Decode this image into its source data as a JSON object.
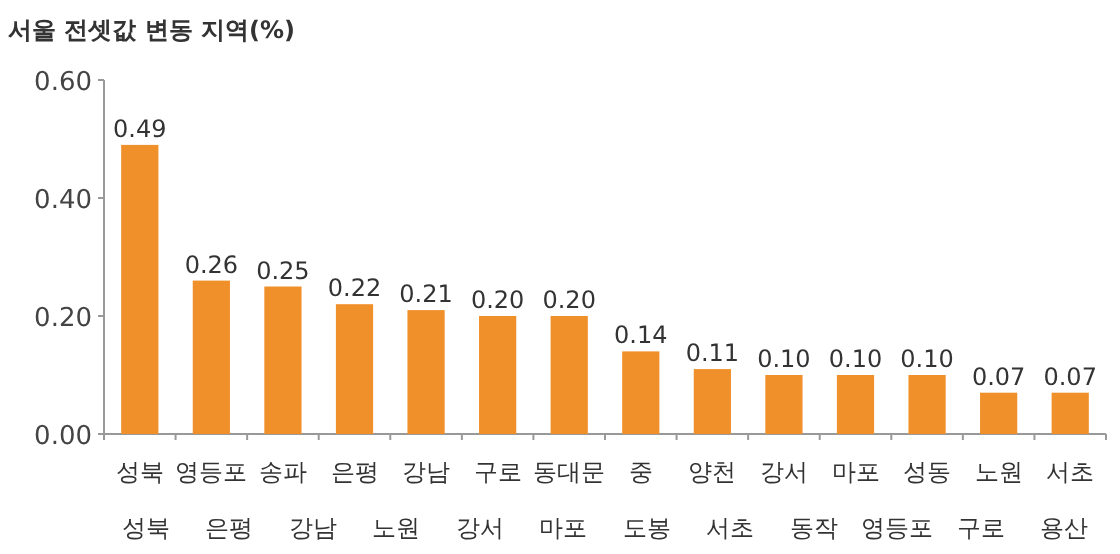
{
  "chart_data": {
    "type": "bar",
    "title": "서울 전셋값 변동 지역(%)",
    "categories": [
      "성북",
      "영등포",
      "송파",
      "은평",
      "강남",
      "구로",
      "동대문",
      "중",
      "양천",
      "강서",
      "마포",
      "성동",
      "노원",
      "서초"
    ],
    "values": [
      0.49,
      0.26,
      0.25,
      0.22,
      0.21,
      0.2,
      0.2,
      0.14,
      0.11,
      0.1,
      0.1,
      0.1,
      0.07,
      0.07
    ],
    "color": "#f0902a",
    "data_labels": true,
    "value_labels": [
      "0.49",
      "0.26",
      "0.25",
      "0.22",
      "0.21",
      "0.20",
      "0.20",
      "0.14",
      "0.11",
      "0.10",
      "0.10",
      "0.10",
      "0.07",
      "0.07"
    ],
    "ylim": [
      0,
      0.6
    ],
    "yticks": [
      {
        "value": 0,
        "label": "0.00"
      },
      {
        "value": 0.2,
        "label": "0.20"
      },
      {
        "value": 0.4,
        "label": "0.40"
      },
      {
        "value": 0.6,
        "label": "0.60"
      }
    ],
    "grid": false,
    "annotations": [
      "성북",
      "은평",
      "강남",
      "노원",
      "강서",
      "마포",
      "도봉",
      "서초",
      "동작",
      "영등포",
      "구로",
      "용산"
    ]
  }
}
